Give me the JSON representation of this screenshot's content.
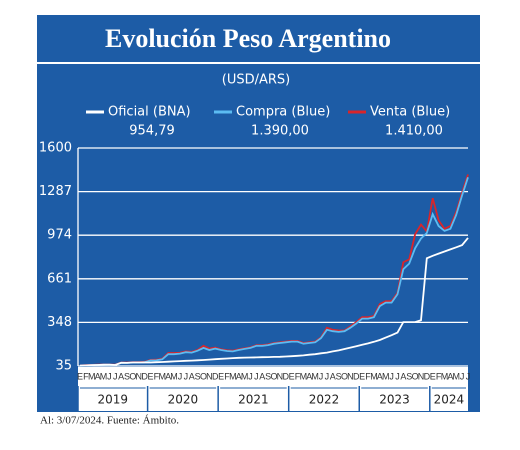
{
  "chart_data": {
    "type": "line",
    "title": "Evolución Peso Argentino",
    "subtitle": "(USD/ARS)",
    "footer": "Al: 3/07/2024. Fuente: Ámbito.",
    "categories": [
      "E",
      "F",
      "M",
      "A",
      "M",
      "J",
      "J",
      "A",
      "S",
      "O",
      "N",
      "D",
      "E",
      "F",
      "M",
      "A",
      "M",
      "J",
      "J",
      "A",
      "S",
      "O",
      "N",
      "D",
      "E",
      "F",
      "M",
      "A",
      "M",
      "J",
      "J",
      "A",
      "S",
      "O",
      "N",
      "D",
      "E",
      "F",
      "M",
      "A",
      "M",
      "J",
      "J",
      "A",
      "S",
      "O",
      "N",
      "D",
      "E",
      "F",
      "M",
      "A",
      "M",
      "J",
      "J",
      "A",
      "S",
      "O",
      "N",
      "D",
      "E",
      "F",
      "M",
      "A",
      "M",
      "J",
      "J"
    ],
    "years": [
      "2019",
      "2020",
      "2021",
      "2022",
      "2023",
      "2024"
    ],
    "ylim": [
      35,
      1600
    ],
    "yticks": [
      35,
      348,
      661,
      974,
      1287,
      1600
    ],
    "grid": true,
    "series": [
      {
        "name": "Oficial (BNA)",
        "latest_label": "954,79",
        "color": "#ffffff",
        "values": [
          38,
          39,
          41,
          42,
          44,
          44,
          42,
          58,
          57,
          60,
          60,
          60,
          60,
          62,
          64,
          66,
          68,
          70,
          72,
          74,
          76,
          78,
          81,
          84,
          87,
          89,
          92,
          94,
          95,
          96,
          97,
          98,
          99,
          100,
          101,
          103,
          105,
          108,
          111,
          116,
          120,
          126,
          131,
          140,
          147,
          157,
          167,
          177,
          187,
          197,
          209,
          222,
          239,
          256,
          275,
          350,
          350,
          350,
          364,
          808,
          826,
          842,
          857,
          872,
          887,
          903,
          954.79
        ]
      },
      {
        "name": "Compra (Blue)",
        "latest_label": "1.390,00",
        "color": "#5cbcf2",
        "values": [
          37,
          39,
          41,
          43,
          43,
          42,
          43,
          58,
          57,
          60,
          60,
          62,
          75,
          76,
          83,
          120,
          120,
          124,
          134,
          131,
          145,
          165,
          150,
          160,
          150,
          143,
          140,
          150,
          158,
          165,
          180,
          180,
          185,
          195,
          200,
          205,
          210,
          210,
          195,
          200,
          205,
          235,
          295,
          285,
          280,
          285,
          310,
          340,
          375,
          375,
          385,
          465,
          490,
          490,
          550,
          730,
          770,
          880,
          950,
          990,
          1125,
          1040,
          1005,
          1020,
          1120,
          1260,
          1390
        ]
      },
      {
        "name": "Venta (Blue)",
        "latest_label": "1.410,00",
        "color": "#d9252a",
        "values": [
          39,
          41,
          43,
          45,
          45,
          44,
          45,
          60,
          60,
          63,
          63,
          65,
          79,
          80,
          88,
          128,
          128,
          130,
          140,
          136,
          150,
          180,
          160,
          168,
          155,
          148,
          145,
          155,
          162,
          170,
          184,
          184,
          190,
          200,
          205,
          210,
          215,
          215,
          200,
          205,
          210,
          240,
          310,
          295,
          290,
          290,
          320,
          350,
          385,
          385,
          395,
          480,
          500,
          500,
          560,
          780,
          800,
          980,
          1050,
          1000,
          1240,
          1080,
          1020,
          1040,
          1140,
          1280,
          1410
        ]
      }
    ]
  }
}
